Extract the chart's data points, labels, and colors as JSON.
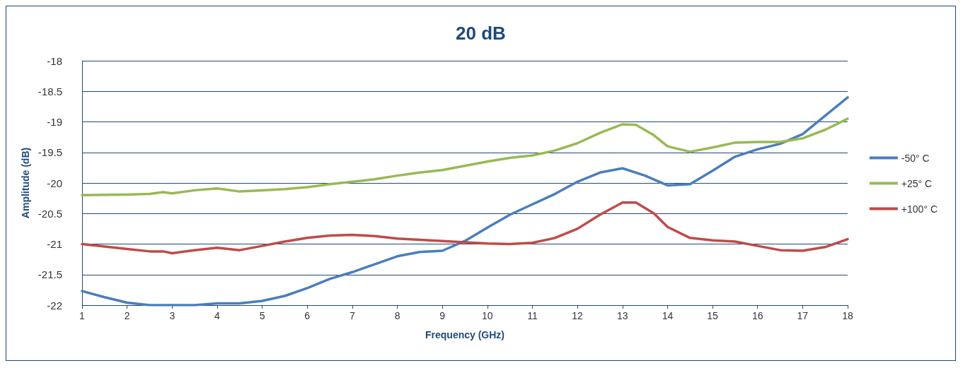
{
  "chart_data": {
    "type": "line",
    "title": "20 dB",
    "xlabel": "Frequency (GHz)",
    "ylabel": "Amplitude (dB)",
    "xlim": [
      1,
      18
    ],
    "xticks": [
      1,
      2,
      3,
      4,
      5,
      6,
      7,
      8,
      9,
      10,
      11,
      12,
      13,
      14,
      15,
      16,
      17,
      18
    ],
    "ylim": [
      -22,
      -18
    ],
    "yticks": [
      -22,
      -21.5,
      -21,
      -20.5,
      -20,
      -19.5,
      -19,
      -18.5,
      -18
    ],
    "grid": "y",
    "legend": "right",
    "marker": "none",
    "line_style": "solid",
    "series": [
      {
        "name": "-50° C",
        "color": "#4a7ebb",
        "x": [
          1,
          1.5,
          2,
          2.5,
          3,
          3.5,
          4,
          4.5,
          5,
          5.5,
          6,
          6.5,
          7,
          7.5,
          8,
          8.5,
          9,
          9.5,
          10,
          10.5,
          11,
          11.5,
          12,
          12.5,
          13,
          13.5,
          14,
          14.5,
          15,
          15.5,
          16,
          16.5,
          17,
          17.5,
          18
        ],
        "values": [
          -21.77,
          -21.87,
          -21.96,
          -22,
          -22,
          -22,
          -21.97,
          -21.97,
          -21.93,
          -21.85,
          -21.72,
          -21.57,
          -21.46,
          -21.33,
          -21.2,
          -21.13,
          -21.11,
          -20.95,
          -20.73,
          -20.52,
          -20.35,
          -20.18,
          -19.98,
          -19.83,
          -19.76,
          -19.88,
          -20.04,
          -20.02,
          -19.8,
          -19.57,
          -19.45,
          -19.36,
          -19.2,
          -18.9,
          -18.6
        ]
      },
      {
        "name": "+25° C",
        "color": "#98b954",
        "x": [
          1,
          2,
          2.5,
          2.8,
          3,
          3.5,
          4,
          4.5,
          5,
          5.5,
          6,
          6.5,
          7,
          7.5,
          8,
          8.5,
          9,
          9.5,
          10,
          10.5,
          11,
          11.5,
          12,
          12.5,
          13,
          13.3,
          13.7,
          14,
          14.5,
          15,
          15.5,
          16,
          16.5,
          17,
          17.5,
          18
        ],
        "values": [
          -20.2,
          -20.19,
          -20.18,
          -20.15,
          -20.17,
          -20.12,
          -20.09,
          -20.14,
          -20.12,
          -20.1,
          -20.07,
          -20.02,
          -19.98,
          -19.94,
          -19.88,
          -19.83,
          -19.79,
          -19.72,
          -19.65,
          -19.59,
          -19.55,
          -19.47,
          -19.35,
          -19.18,
          -19.04,
          -19.05,
          -19.22,
          -19.4,
          -19.49,
          -19.42,
          -19.34,
          -19.33,
          -19.33,
          -19.27,
          -19.13,
          -18.95
        ]
      },
      {
        "name": "+100° C",
        "color": "#be4b48",
        "x": [
          1,
          1.5,
          2,
          2.5,
          2.8,
          3,
          3.5,
          4,
          4.5,
          5,
          5.5,
          6,
          6.5,
          7,
          7.5,
          8,
          8.5,
          9,
          9.5,
          10,
          10.5,
          11,
          11.5,
          12,
          12.5,
          13,
          13.3,
          13.7,
          14,
          14.5,
          15,
          15.5,
          16,
          16.5,
          17,
          17.5,
          18
        ],
        "values": [
          -21,
          -21.04,
          -21.08,
          -21.12,
          -21.12,
          -21.15,
          -21.1,
          -21.06,
          -21.1,
          -21.03,
          -20.96,
          -20.9,
          -20.86,
          -20.85,
          -20.87,
          -20.91,
          -20.93,
          -20.95,
          -20.97,
          -20.99,
          -21,
          -20.98,
          -20.9,
          -20.75,
          -20.52,
          -20.32,
          -20.32,
          -20.5,
          -20.72,
          -20.9,
          -20.94,
          -20.96,
          -21.03,
          -21.1,
          -21.11,
          -21.05,
          -20.92
        ]
      }
    ]
  }
}
